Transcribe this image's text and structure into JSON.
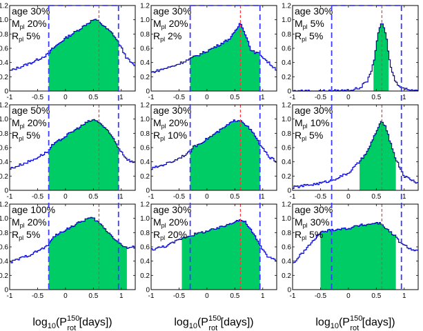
{
  "chart_data": {
    "type": "area",
    "xlim": [
      -1,
      1.25
    ],
    "ylim": [
      0,
      1.2
    ],
    "xticks": [
      "-1",
      "-0.5",
      "0",
      "0.5",
      "1"
    ],
    "xtick_values": [
      -1,
      -0.5,
      0,
      0.5,
      1
    ],
    "yticks": [
      "0",
      "0.2",
      "0.4",
      "0.6",
      "0.8",
      "1.0",
      "1.2"
    ],
    "ytick_values": [
      0,
      0.2,
      0.4,
      0.6,
      0.8,
      1.0,
      1.2
    ],
    "xlabel": {
      "base": "log",
      "sub1": "10",
      "p": "(P",
      "sup": "150",
      "sub2": "rot",
      "tail": " [days])"
    },
    "window": {
      "x_min": -0.3,
      "x_max": 0.95
    },
    "red_line_x": 0.6,
    "colors": {
      "fill": "#00cc66",
      "line": "#0000cc",
      "window": "#3a3aff",
      "red": "#ff3333",
      "grid": "#cccccc"
    },
    "panels": [
      {
        "label": {
          "age": "age 30%",
          "mpl": "20%",
          "rpl": "5%"
        },
        "row": 0,
        "col": 0,
        "x": [
          -1,
          -0.6,
          -0.3,
          -0.25,
          0,
          0.2,
          0.4,
          0.5,
          0.6,
          0.7,
          0.85,
          0.95,
          1.1,
          1.25
        ],
        "y": [
          0.28,
          0.4,
          0.52,
          0.58,
          0.74,
          0.84,
          0.95,
          1.0,
          0.98,
          0.9,
          0.8,
          0.68,
          0.46,
          0.34
        ],
        "fill_range": [
          -0.3,
          0.95
        ]
      },
      {
        "label": {
          "age": "age 30%",
          "mpl": "20%",
          "rpl": "2%"
        },
        "row": 0,
        "col": 1,
        "x": [
          -1,
          -0.6,
          -0.3,
          -0.25,
          0,
          0.2,
          0.4,
          0.5,
          0.6,
          0.65,
          0.8,
          0.95,
          1.1,
          1.25
        ],
        "y": [
          0.26,
          0.35,
          0.45,
          0.47,
          0.56,
          0.64,
          0.73,
          0.82,
          0.96,
          0.88,
          0.56,
          0.52,
          0.4,
          0.3
        ],
        "fill_range": [
          -0.3,
          0.95
        ]
      },
      {
        "label": {
          "age": "age 30%",
          "mpl": "5%",
          "rpl": "5%"
        },
        "row": 0,
        "col": 2,
        "x": [
          -1,
          -0.3,
          0,
          0.2,
          0.35,
          0.45,
          0.52,
          0.6,
          0.68,
          0.75,
          0.85,
          1.0,
          1.25
        ],
        "y": [
          0.0,
          0.0,
          0.01,
          0.04,
          0.15,
          0.38,
          0.75,
          0.98,
          0.76,
          0.36,
          0.12,
          0.03,
          0.01
        ],
        "fill_range": [
          0.45,
          0.72
        ]
      },
      {
        "label": {
          "age": "age 50%",
          "mpl": "20%",
          "rpl": "5%"
        },
        "row": 1,
        "col": 0,
        "x": [
          -1,
          -0.6,
          -0.3,
          -0.25,
          0,
          0.2,
          0.4,
          0.5,
          0.6,
          0.7,
          0.85,
          0.95,
          1.1,
          1.25
        ],
        "y": [
          0.3,
          0.42,
          0.55,
          0.62,
          0.76,
          0.86,
          0.96,
          0.99,
          0.96,
          0.88,
          0.74,
          0.6,
          0.44,
          0.38
        ],
        "fill_range": [
          -0.3,
          0.95
        ]
      },
      {
        "label": {
          "age": "age 30%",
          "mpl": "20%",
          "rpl": "10%"
        },
        "row": 1,
        "col": 1,
        "x": [
          -1,
          -0.6,
          -0.3,
          -0.25,
          0,
          0.2,
          0.4,
          0.5,
          0.6,
          0.7,
          0.85,
          0.95,
          1.1,
          1.25
        ],
        "y": [
          0.3,
          0.41,
          0.54,
          0.6,
          0.72,
          0.82,
          0.93,
          0.98,
          0.99,
          0.92,
          0.78,
          0.64,
          0.48,
          0.4
        ],
        "fill_range": [
          -0.3,
          0.95
        ]
      },
      {
        "label": {
          "age": "age 30%",
          "mpl": "10%",
          "rpl": "5%"
        },
        "row": 1,
        "col": 2,
        "x": [
          -1,
          -0.5,
          -0.3,
          0,
          0.2,
          0.35,
          0.45,
          0.55,
          0.6,
          0.65,
          0.75,
          0.85,
          1.0,
          1.25
        ],
        "y": [
          0.04,
          0.1,
          0.14,
          0.24,
          0.4,
          0.55,
          0.74,
          0.9,
          0.97,
          0.92,
          0.68,
          0.44,
          0.2,
          0.1
        ],
        "fill_range": [
          0.2,
          0.85
        ]
      },
      {
        "label": {
          "age": "age 100%",
          "mpl": "20%",
          "rpl": "5%"
        },
        "row": 2,
        "col": 0,
        "x": [
          -1,
          -0.6,
          -0.3,
          -0.25,
          0,
          0.2,
          0.4,
          0.5,
          0.6,
          0.7,
          0.85,
          0.95,
          1.1,
          1.25
        ],
        "y": [
          0.38,
          0.5,
          0.62,
          0.72,
          0.84,
          0.92,
          1.0,
          1.0,
          0.94,
          0.86,
          0.74,
          0.66,
          0.58,
          0.6
        ],
        "fill_range": [
          -0.3,
          1.1
        ]
      },
      {
        "label": {
          "age": "age 30%",
          "mpl": "20%",
          "rpl": "20%"
        },
        "row": 2,
        "col": 1,
        "x": [
          -1,
          -0.7,
          -0.45,
          -0.3,
          0,
          0.2,
          0.4,
          0.5,
          0.6,
          0.7,
          0.85,
          0.95,
          1.1,
          1.25
        ],
        "y": [
          0.56,
          0.62,
          0.72,
          0.76,
          0.82,
          0.86,
          0.92,
          0.96,
          0.98,
          0.94,
          0.76,
          0.62,
          0.46,
          0.4
        ],
        "fill_range": [
          -0.45,
          0.95
        ]
      },
      {
        "label": {
          "age": "age 30%",
          "mpl": "30%",
          "rpl": "5%"
        },
        "row": 2,
        "col": 2,
        "x": [
          -1,
          -0.7,
          -0.5,
          -0.3,
          0,
          0.2,
          0.4,
          0.5,
          0.6,
          0.7,
          0.85,
          0.95,
          1.1,
          1.25
        ],
        "y": [
          0.36,
          0.62,
          0.8,
          0.84,
          0.86,
          0.9,
          0.92,
          0.94,
          0.92,
          0.84,
          0.74,
          0.64,
          0.58,
          0.54
        ],
        "fill_range": [
          -0.5,
          0.85
        ]
      }
    ]
  }
}
